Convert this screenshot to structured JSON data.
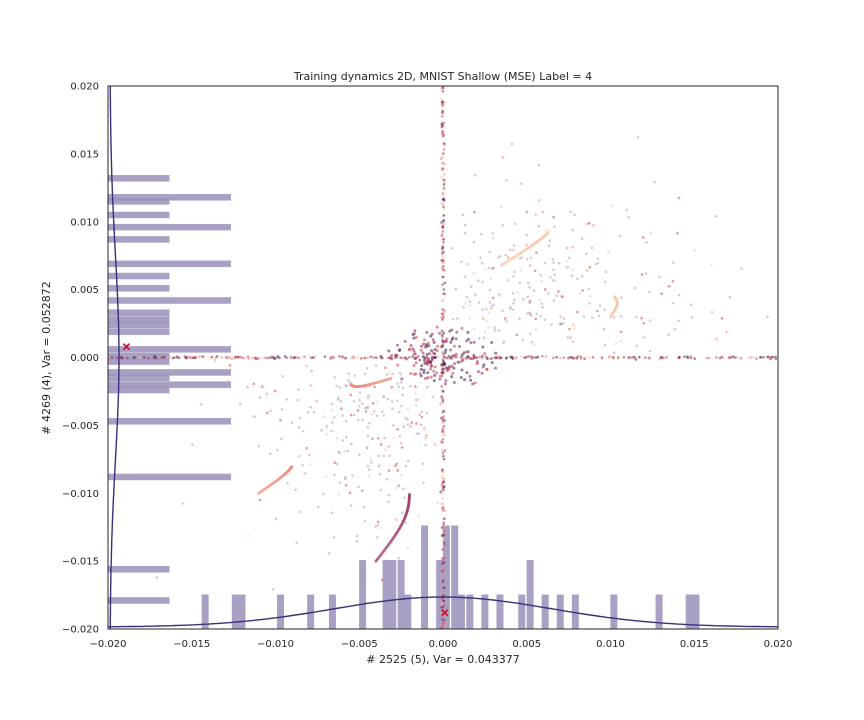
{
  "chart_data": {
    "type": "scatter",
    "title": "Training dynamics 2D, MNIST Shallow (MSE) Label = 4",
    "xlabel": "# 2525 (5), Var = 0.043377",
    "ylabel": "# 4269 (4), Var = 0.052872",
    "xlim": [
      -0.02,
      0.02
    ],
    "ylim": [
      -0.02,
      0.02
    ],
    "x_ticks": [
      "−0.020",
      "−0.015",
      "−0.010",
      "−0.005",
      "0.000",
      "0.005",
      "0.010",
      "0.015",
      "0.020"
    ],
    "y_ticks": [
      "−0.020",
      "−0.015",
      "−0.010",
      "−0.005",
      "0.000",
      "0.005",
      "0.010",
      "0.015",
      "0.020"
    ],
    "grid": false,
    "colors": {
      "histogram": "#9a8fba",
      "gaussian_curve": "#3b2f7a",
      "marker": "#e0001b",
      "point_palette": [
        "#f6c7a8",
        "#f08a7a",
        "#d8434f",
        "#9a3065",
        "#4b2a5c",
        "#b0a0c0"
      ]
    },
    "markers": [
      {
        "symbol": "x",
        "x": -0.0189,
        "y": 0.0008
      },
      {
        "symbol": "x",
        "x": 0.0001,
        "y": -0.0188
      }
    ],
    "x_histogram_bars": [
      {
        "x": -0.0142,
        "h": 1
      },
      {
        "x": -0.0124,
        "h": 1
      },
      {
        "x": -0.012,
        "h": 1
      },
      {
        "x": -0.0097,
        "h": 1
      },
      {
        "x": -0.0079,
        "h": 1
      },
      {
        "x": -0.0066,
        "h": 1
      },
      {
        "x": -0.0048,
        "h": 2
      },
      {
        "x": -0.0034,
        "h": 2
      },
      {
        "x": -0.003,
        "h": 2
      },
      {
        "x": -0.0025,
        "h": 2
      },
      {
        "x": -0.0021,
        "h": 1
      },
      {
        "x": -0.0011,
        "h": 3
      },
      {
        "x": -0.0002,
        "h": 2
      },
      {
        "x": 0.0002,
        "h": 3
      },
      {
        "x": 0.0007,
        "h": 3
      },
      {
        "x": 0.0011,
        "h": 1
      },
      {
        "x": 0.0016,
        "h": 1
      },
      {
        "x": 0.0025,
        "h": 1
      },
      {
        "x": 0.0034,
        "h": 1
      },
      {
        "x": 0.0047,
        "h": 1
      },
      {
        "x": 0.0052,
        "h": 2
      },
      {
        "x": 0.0061,
        "h": 1
      },
      {
        "x": 0.007,
        "h": 1
      },
      {
        "x": 0.0079,
        "h": 1
      },
      {
        "x": 0.0102,
        "h": 1
      },
      {
        "x": 0.0129,
        "h": 1
      },
      {
        "x": 0.0147,
        "h": 1
      },
      {
        "x": 0.0151,
        "h": 1
      }
    ],
    "y_histogram_bars": [
      {
        "y": 0.0132,
        "w": 1
      },
      {
        "y": 0.0118,
        "w": 2
      },
      {
        "y": 0.0115,
        "w": 1
      },
      {
        "y": 0.0105,
        "w": 1
      },
      {
        "y": 0.0096,
        "w": 2
      },
      {
        "y": 0.0087,
        "w": 1
      },
      {
        "y": 0.0069,
        "w": 2
      },
      {
        "y": 0.006,
        "w": 1
      },
      {
        "y": 0.0051,
        "w": 1
      },
      {
        "y": 0.0042,
        "w": 2
      },
      {
        "y": 0.0033,
        "w": 1
      },
      {
        "y": 0.0028,
        "w": 1
      },
      {
        "y": 0.0024,
        "w": 1
      },
      {
        "y": 0.0019,
        "w": 1
      },
      {
        "y": 0.0006,
        "w": 2
      },
      {
        "y": 0.0001,
        "w": 1
      },
      {
        "y": -0.0003,
        "w": 1
      },
      {
        "y": -0.0011,
        "w": 2
      },
      {
        "y": -0.0015,
        "w": 1
      },
      {
        "y": -0.002,
        "w": 2
      },
      {
        "y": -0.0024,
        "w": 1
      },
      {
        "y": -0.0047,
        "w": 2
      },
      {
        "y": -0.0088,
        "w": 2
      },
      {
        "y": -0.0156,
        "w": 1
      },
      {
        "y": -0.0179,
        "w": 1
      }
    ],
    "gaussian_x": {
      "mean": 0.0,
      "sd": 0.0065
    },
    "gaussian_y": {
      "mean": 0.0,
      "sd": 0.0075
    },
    "scatter_points": {
      "count": 1400,
      "clusters": [
        "horizontal axis band y=0",
        "vertical axis band x=0",
        "diffuse cloud upper-right quadrant",
        "diffuse cloud lower-left quadrant",
        "dense trajectories near origin"
      ]
    }
  }
}
